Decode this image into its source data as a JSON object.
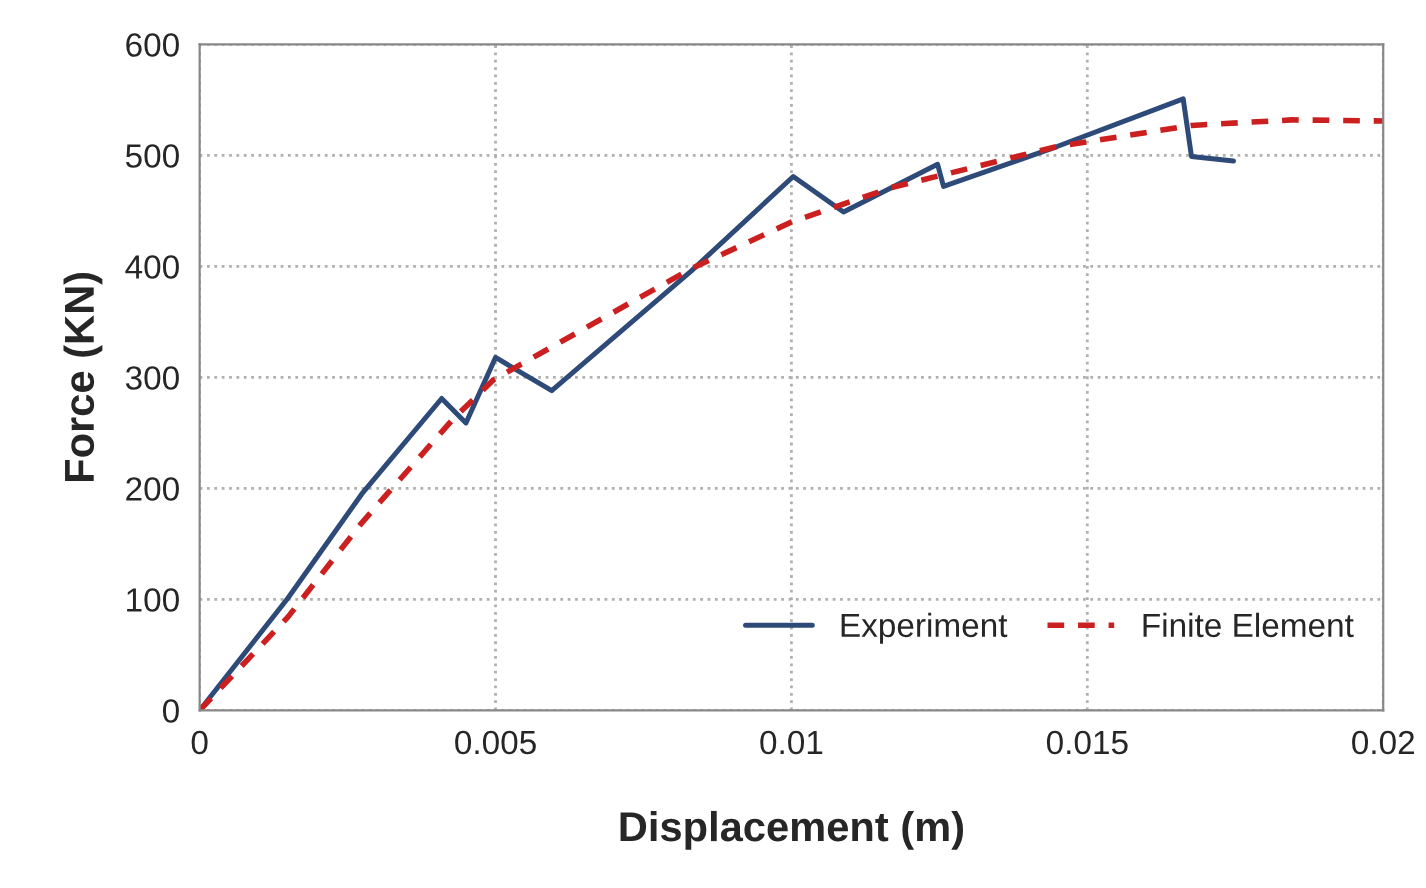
{
  "chart_data": {
    "type": "line",
    "xlabel": "Displacement (m)",
    "ylabel": "Force (KN)",
    "xlim": [
      0,
      0.02
    ],
    "xticks": [
      0,
      0.005,
      0.01,
      0.015,
      0.02
    ],
    "ylim": [
      0,
      600
    ],
    "yticks": [
      0,
      100,
      200,
      300,
      400,
      500,
      600
    ],
    "grid": true,
    "legend": "bottom right",
    "series": [
      {
        "name": "Experiment",
        "color": "#2e4a78",
        "line_style": "solid",
        "x": [
          0,
          0.00149,
          0.00274,
          0.00409,
          0.0045,
          0.005,
          0.00595,
          0.00831,
          0.01003,
          0.01088,
          0.01247,
          0.01257,
          0.01449,
          0.01662,
          0.01676,
          0.01747
        ],
        "values": [
          0,
          101,
          195,
          281,
          259,
          318,
          288,
          396,
          481,
          449,
          492,
          472,
          508,
          551,
          499,
          495
        ]
      },
      {
        "name": "Finite Element",
        "color": "#cc1f1f",
        "line_style": "dashed",
        "x": [
          0,
          0.00149,
          0.00274,
          0.00429,
          0.00497,
          0.00747,
          0.00831,
          0.01,
          0.01169,
          0.01449,
          0.01676,
          0.01845,
          0.02
        ],
        "values": [
          0,
          84,
          169,
          263,
          298,
          373,
          398,
          440,
          471,
          508,
          527,
          532,
          531
        ]
      }
    ]
  }
}
